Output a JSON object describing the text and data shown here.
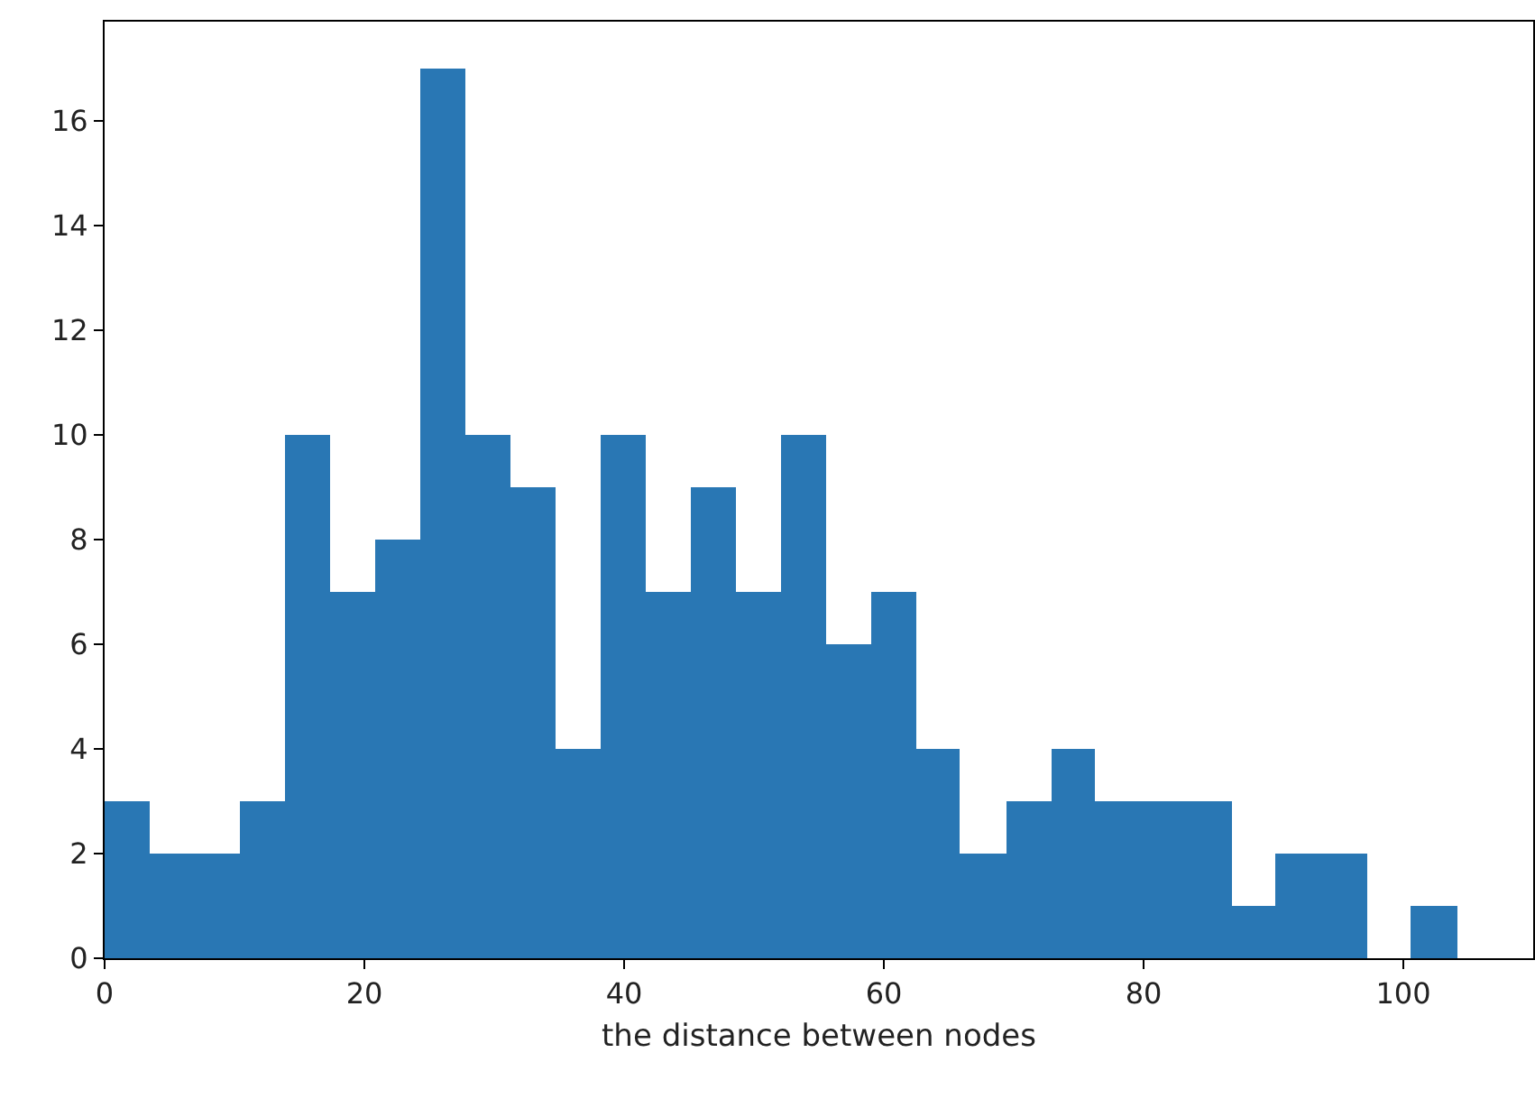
{
  "chart_data": {
    "type": "histogram",
    "xlabel": "the distance between nodes",
    "color": "#2977b4",
    "bins": [
      0,
      3.5,
      6.9,
      10.4,
      13.9,
      17.4,
      20.8,
      24.3,
      27.8,
      31.2,
      34.7,
      38.2,
      41.6,
      45.1,
      48.6,
      52.1,
      55.5,
      59.0,
      62.5,
      65.9,
      69.4,
      72.9,
      76.3,
      79.8,
      83.3,
      86.8,
      90.2,
      93.7,
      97.2,
      100.6,
      104.1
    ],
    "values": [
      3,
      2,
      2,
      3,
      10,
      7,
      8,
      17,
      10,
      9,
      4,
      10,
      7,
      9,
      7,
      10,
      6,
      7,
      4,
      2,
      3,
      4,
      3,
      3,
      3,
      1,
      2,
      2,
      0,
      1
    ],
    "xlim": [
      0,
      110
    ],
    "xticks": [
      0,
      20,
      40,
      60,
      80,
      100
    ],
    "ylim": [
      0,
      17.9
    ],
    "yticks": [
      0,
      2,
      4,
      6,
      8,
      10,
      12,
      14,
      16
    ],
    "grid": false,
    "legend": false
  }
}
